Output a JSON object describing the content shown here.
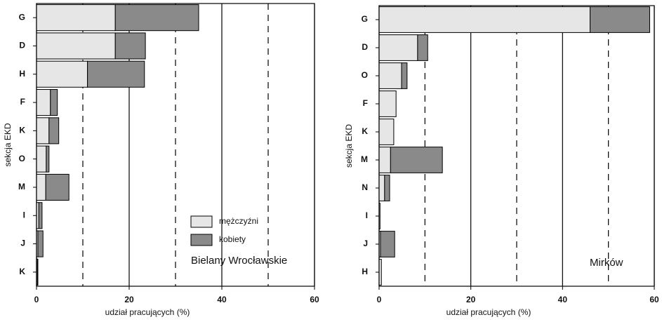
{
  "chart_data": [
    {
      "type": "bar",
      "orientation": "horizontal",
      "stacked": true,
      "xlabel": "udział pracujących (%)",
      "ylabel": "sekcja EKD",
      "annotation": "Bielany Wrocławskie",
      "categories": [
        "G",
        "D",
        "H",
        "F",
        "K",
        "O",
        "M",
        "I",
        "J",
        "K"
      ],
      "series": [
        {
          "name": "mężczyźni",
          "color": "#e6e6e6",
          "values": [
            17,
            17,
            11,
            3,
            2.7,
            2.1,
            2,
            0.5,
            0.3,
            0.2
          ]
        },
        {
          "name": "kobiety",
          "color": "#8a8a8a",
          "values": [
            18,
            6.5,
            12.3,
            1.5,
            2.1,
            0.6,
            5,
            0.7,
            1.1,
            0.1
          ]
        }
      ],
      "xlim": [
        0,
        60
      ],
      "xticks": [
        0,
        20,
        40,
        60
      ],
      "minor_xticks": [
        10,
        30,
        50
      ],
      "grid": true,
      "legend": "lower right"
    },
    {
      "type": "bar",
      "orientation": "horizontal",
      "stacked": true,
      "xlabel": "udział pracujących (%)",
      "ylabel": "sekcja EKD",
      "annotation": "Mirków",
      "categories": [
        "G",
        "D",
        "O",
        "F",
        "K",
        "M",
        "N",
        "I",
        "J",
        "H"
      ],
      "series": [
        {
          "color": "#e6e6e6",
          "values": [
            46,
            8.4,
            4.9,
            3.7,
            3.2,
            2.5,
            1.2,
            0.2,
            0.3,
            0.5
          ]
        },
        {
          "color": "#8a8a8a",
          "values": [
            13,
            2.2,
            1.2,
            0,
            0,
            11.3,
            1.1,
            0,
            3.1,
            0
          ]
        }
      ],
      "xlim": [
        0,
        60
      ],
      "xticks": [
        0,
        20,
        40,
        60
      ],
      "minor_xticks": [
        10,
        30,
        50
      ],
      "grid": true
    }
  ]
}
